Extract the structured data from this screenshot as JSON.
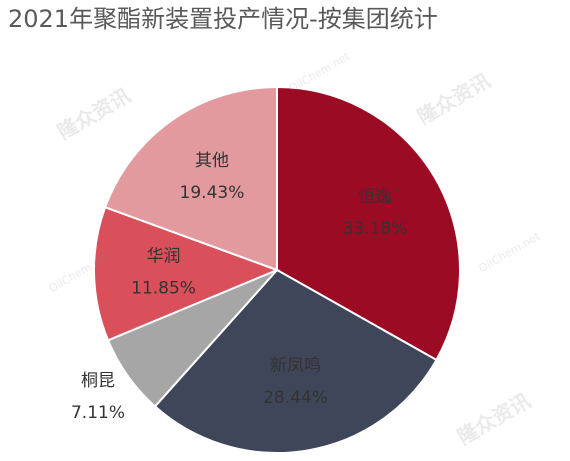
{
  "chart_data": {
    "type": "pie",
    "title": "2021年聚酯新装置投产情况-按集团统计",
    "categories": [
      "恒逸",
      "新凤鸣",
      "桐昆",
      "华润",
      "其他"
    ],
    "values": [
      33.18,
      28.44,
      7.11,
      11.85,
      19.43
    ],
    "value_labels": [
      "33.18%",
      "28.44%",
      "7.11%",
      "11.85%",
      "19.43%"
    ],
    "colors": [
      "#9b0b24",
      "#3f4659",
      "#a6a6a6",
      "#d9505a",
      "#e29a9f"
    ]
  },
  "watermark": {
    "brand": "隆众资讯",
    "site": "OilChem.net"
  }
}
